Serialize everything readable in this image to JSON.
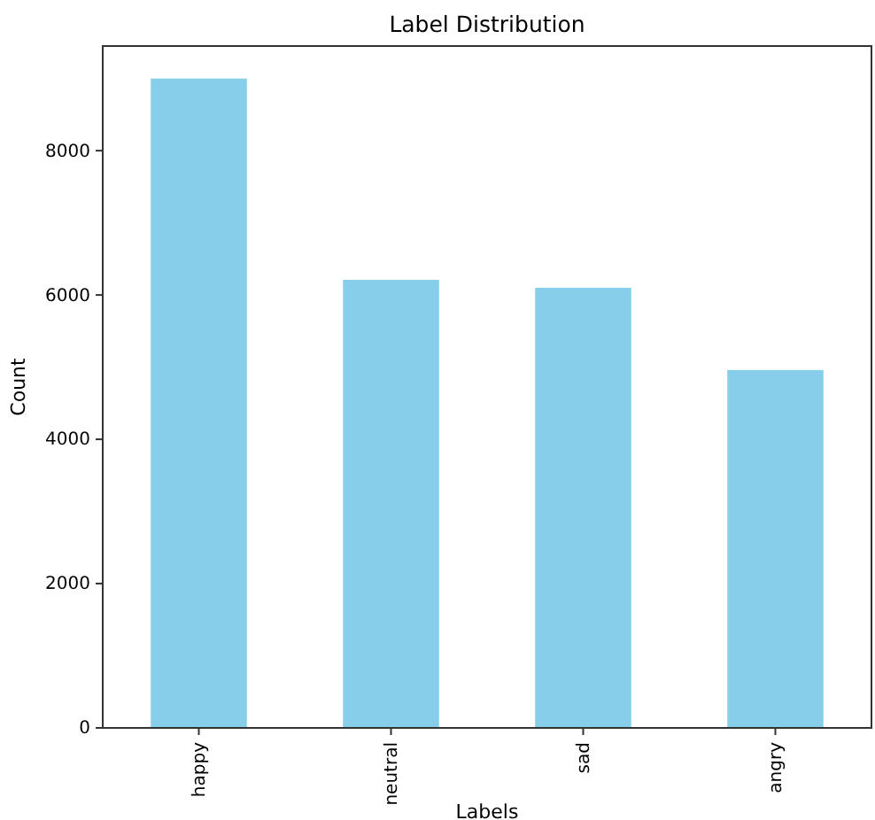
{
  "chart_data": {
    "type": "bar",
    "title": "Label Distribution",
    "xlabel": "Labels",
    "ylabel": "Count",
    "categories": [
      "happy",
      "neutral",
      "sad",
      "angry"
    ],
    "values": [
      9000,
      6210,
      6100,
      4960
    ],
    "color": "#87ceeb",
    "ylim": [
      0,
      9450
    ],
    "yticks": [
      0,
      2000,
      4000,
      6000,
      8000
    ],
    "grid": false
  }
}
